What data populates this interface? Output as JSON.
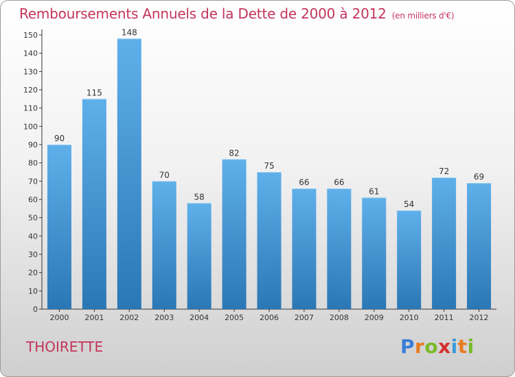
{
  "header": {
    "title": "Remboursements Annuels de la Dette de 2000 à 2012",
    "unit": "(en milliers d'€)"
  },
  "footer": {
    "commune": "THOIRETTE",
    "logo_letters": [
      "P",
      "r",
      "o",
      "x",
      "i",
      "t",
      "i"
    ],
    "logo_colors": [
      "#3b7dd8",
      "#e87a1e",
      "#7ab929",
      "#d62f2f",
      "#3b9bd8",
      "#e87a1e",
      "#7ab929"
    ]
  },
  "colors": {
    "title": "#c4335b",
    "bar_top": "#5fb0ea",
    "bar_bottom": "#2a77b5"
  },
  "chart_data": {
    "type": "bar",
    "title": "Remboursements Annuels de la Dette de 2000 à 2012",
    "categories": [
      "2000",
      "2001",
      "2002",
      "2003",
      "2004",
      "2005",
      "2006",
      "2007",
      "2008",
      "2009",
      "2010",
      "2011",
      "2012"
    ],
    "values": [
      90,
      115,
      148,
      70,
      58,
      82,
      75,
      66,
      66,
      61,
      54,
      72,
      69
    ],
    "xlabel": "",
    "ylabel": "",
    "ylim": [
      0,
      150
    ],
    "yticks": [
      0,
      10,
      20,
      30,
      40,
      50,
      60,
      70,
      80,
      90,
      100,
      110,
      120,
      130,
      140,
      150
    ],
    "grid": false,
    "legend": "none",
    "data_labels": true
  }
}
